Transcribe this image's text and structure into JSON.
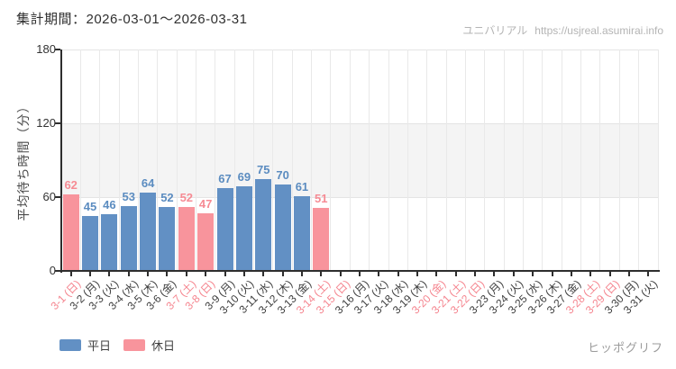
{
  "page": {
    "title": "集計期間：2026-03-01～2026-03-31",
    "watermark_name": "ユニバリアル",
    "watermark_url": "https://usjreal.asumirai.info",
    "footer_attraction": "ヒッポグリフ"
  },
  "colors": {
    "weekday_bar": "#6290c4",
    "holiday_bar": "#f8949c",
    "weekday_text": "#5b8cc0",
    "holiday_text": "#f68b94",
    "xlabel_weekday": "#3d3d3d",
    "xlabel_holiday": "#f5858f",
    "axis": "#2e2e2e",
    "grid": "#e9e9e9",
    "band": "#f4f4f4",
    "top_line": "#e4e4e4"
  },
  "legend": {
    "items": [
      {
        "label": "平日",
        "type": "weekday"
      },
      {
        "label": "休日",
        "type": "holiday"
      }
    ]
  },
  "chart_data": {
    "type": "bar",
    "title": "集計期間：2026-03-01～2026-03-31",
    "xlabel": "",
    "ylabel": "平均待ち時間（分）",
    "ylim": [
      0,
      180
    ],
    "yticks": [
      0,
      60,
      120,
      180
    ],
    "shaded_band": [
      60,
      120
    ],
    "grid": true,
    "legend_position": "bottom-left",
    "categories": [
      "3-1 (日)",
      "3-2 (月)",
      "3-3 (火)",
      "3-4 (水)",
      "3-5 (木)",
      "3-6 (金)",
      "3-7 (土)",
      "3-8 (日)",
      "3-9 (月)",
      "3-10 (火)",
      "3-11 (水)",
      "3-12 (木)",
      "3-13 (金)",
      "3-14 (土)",
      "3-15 (日)",
      "3-16 (月)",
      "3-17 (火)",
      "3-18 (水)",
      "3-19 (木)",
      "3-20 (金)",
      "3-21 (土)",
      "3-22 (日)",
      "3-23 (月)",
      "3-24 (火)",
      "3-25 (水)",
      "3-26 (木)",
      "3-27 (金)",
      "3-28 (土)",
      "3-29 (日)",
      "3-30 (月)",
      "3-31 (火)"
    ],
    "day_types": [
      "holiday",
      "weekday",
      "weekday",
      "weekday",
      "weekday",
      "weekday",
      "holiday",
      "holiday",
      "weekday",
      "weekday",
      "weekday",
      "weekday",
      "weekday",
      "holiday",
      "holiday",
      "weekday",
      "weekday",
      "weekday",
      "weekday",
      "holiday",
      "holiday",
      "holiday",
      "weekday",
      "weekday",
      "weekday",
      "weekday",
      "weekday",
      "holiday",
      "holiday",
      "weekday",
      "weekday"
    ],
    "values": [
      62,
      45,
      46,
      53,
      64,
      52,
      52,
      47,
      67,
      69,
      75,
      70,
      61,
      51,
      null,
      null,
      null,
      null,
      null,
      null,
      null,
      null,
      null,
      null,
      null,
      null,
      null,
      null,
      null,
      null,
      null
    ]
  }
}
